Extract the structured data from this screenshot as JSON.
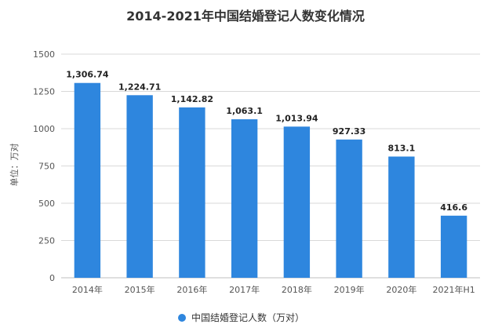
{
  "chart_data": {
    "type": "bar",
    "title": "2014-2021年中国结婚登记人数变化情况",
    "ylabel": "单位：万对",
    "xlabel": "",
    "categories": [
      "2014年",
      "2015年",
      "2016年",
      "2017年",
      "2018年",
      "2019年",
      "2020年",
      "2021年H1"
    ],
    "series": [
      {
        "name": "中国结婚登记人数（万对）",
        "values": [
          1306.74,
          1224.71,
          1142.82,
          1063.1,
          1013.94,
          927.33,
          813.1,
          416.6
        ],
        "labels": [
          "1,306.74",
          "1,224.71",
          "1,142.82",
          "1,063.1",
          "1,013.94",
          "927.33",
          "813.1",
          "416.6"
        ],
        "color": "#2e86de"
      }
    ],
    "ylim": [
      0,
      1500
    ],
    "yticks": [
      0,
      250,
      500,
      750,
      1000,
      1250,
      1500
    ],
    "grid": true,
    "legend_position": "bottom"
  }
}
